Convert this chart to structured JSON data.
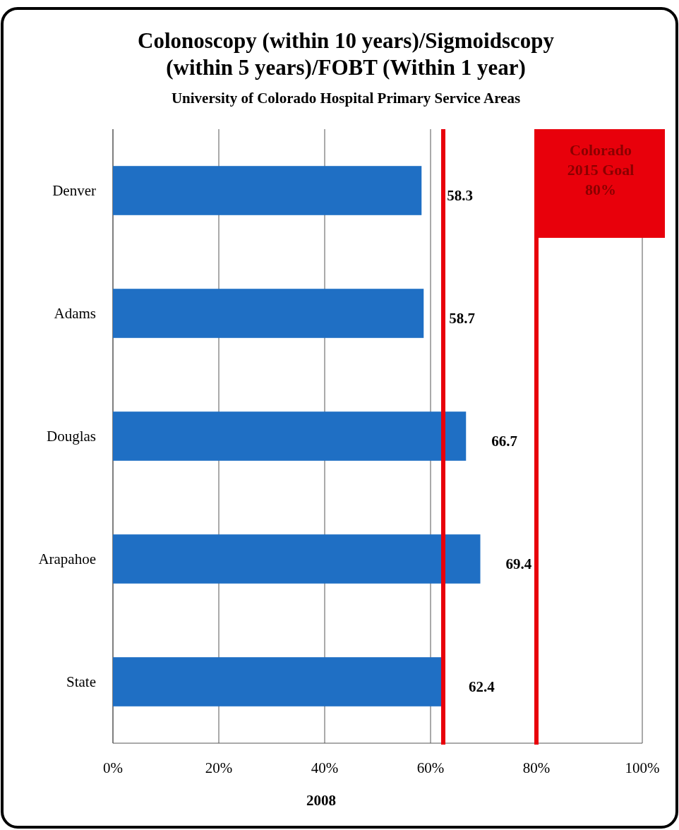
{
  "chart_data": {
    "type": "bar",
    "orientation": "horizontal",
    "title": "Colonoscopy (within 10 years)/Sigmoidscopy (within 5 years)/FOBT (Within 1 year)",
    "subtitle": "University of Colorado Hospital Primary Service Areas",
    "xlabel": "2008",
    "categories": [
      "Denver",
      "Adams",
      "Douglas",
      "Arapahoe",
      "State"
    ],
    "values": [
      58.3,
      58.7,
      66.7,
      69.4,
      62.4
    ],
    "color": "#1f6fc4",
    "data_labels": true,
    "xlim": [
      0,
      100
    ],
    "xticks": [
      {
        "value": 0,
        "label": "0%"
      },
      {
        "value": 20,
        "label": "20%"
      },
      {
        "value": 40,
        "label": "40%"
      },
      {
        "value": 60,
        "label": "60%"
      },
      {
        "value": 80,
        "label": "80%"
      },
      {
        "value": 100,
        "label": "100%"
      }
    ],
    "grid": "x",
    "ref_lines": [
      {
        "axis": "x",
        "value": 62.4,
        "label": null,
        "color": "#e8000b"
      },
      {
        "axis": "x",
        "value": 80,
        "label": "Colorado 2015 Goal 80%",
        "color": "#e8000b"
      }
    ]
  }
}
